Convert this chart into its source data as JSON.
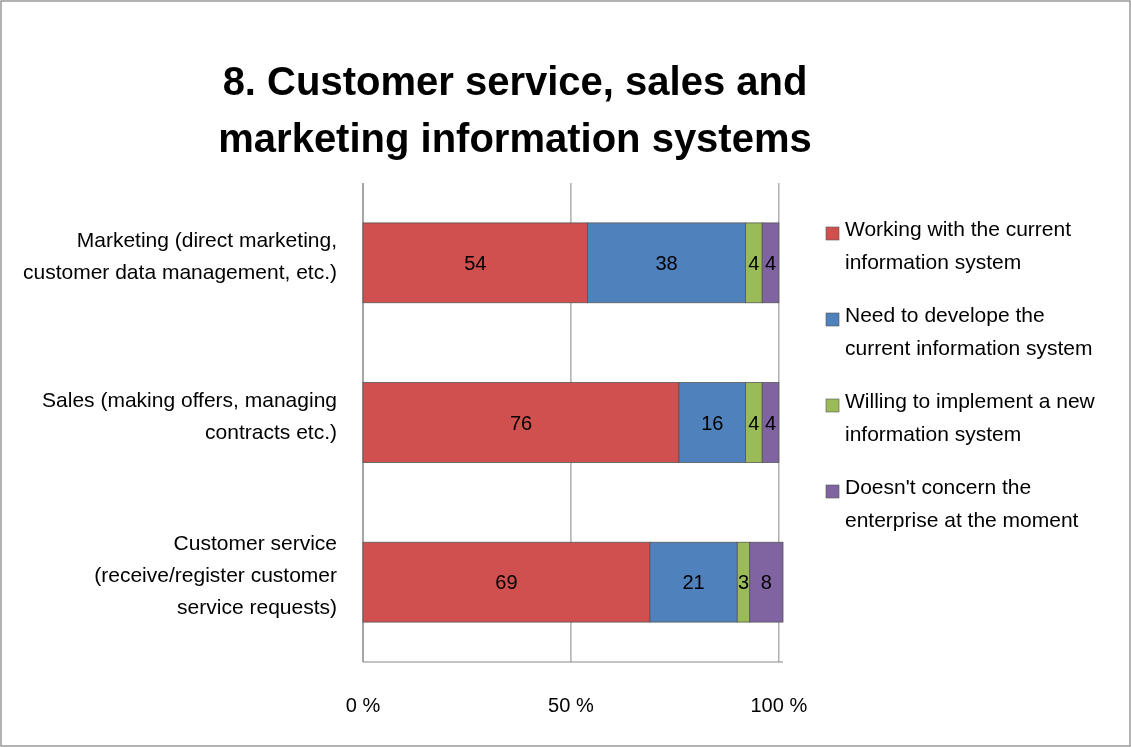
{
  "chart_data": {
    "type": "bar",
    "orientation": "horizontal",
    "stacked": true,
    "title": "8. Customer service, sales and marketing information systems",
    "categories": [
      "Marketing (direct marketing, customer data management, etc.)",
      "Sales (making offers, managing contracts etc.)",
      "Customer service (receive/register customer service requests)"
    ],
    "series": [
      {
        "name": "Working with the current information system",
        "color": "#d0504f",
        "values": [
          54,
          76,
          69
        ]
      },
      {
        "name": "Need to develope the current information system",
        "color": "#4f81bd",
        "values": [
          38,
          16,
          21
        ]
      },
      {
        "name": "Willing to implement a new information system",
        "color": "#9bbb59",
        "values": [
          4,
          4,
          3
        ]
      },
      {
        "name": "Doesn't concern the enterprise at the moment",
        "color": "#8064a2",
        "values": [
          4,
          4,
          8
        ]
      }
    ],
    "xlim": [
      0,
      101
    ],
    "xticks": [
      {
        "value": 0,
        "label": "0 %"
      },
      {
        "value": 50,
        "label": "50 %"
      },
      {
        "value": 100,
        "label": "100 %"
      }
    ],
    "grid": "x",
    "legend": "right",
    "data_labels": true
  }
}
